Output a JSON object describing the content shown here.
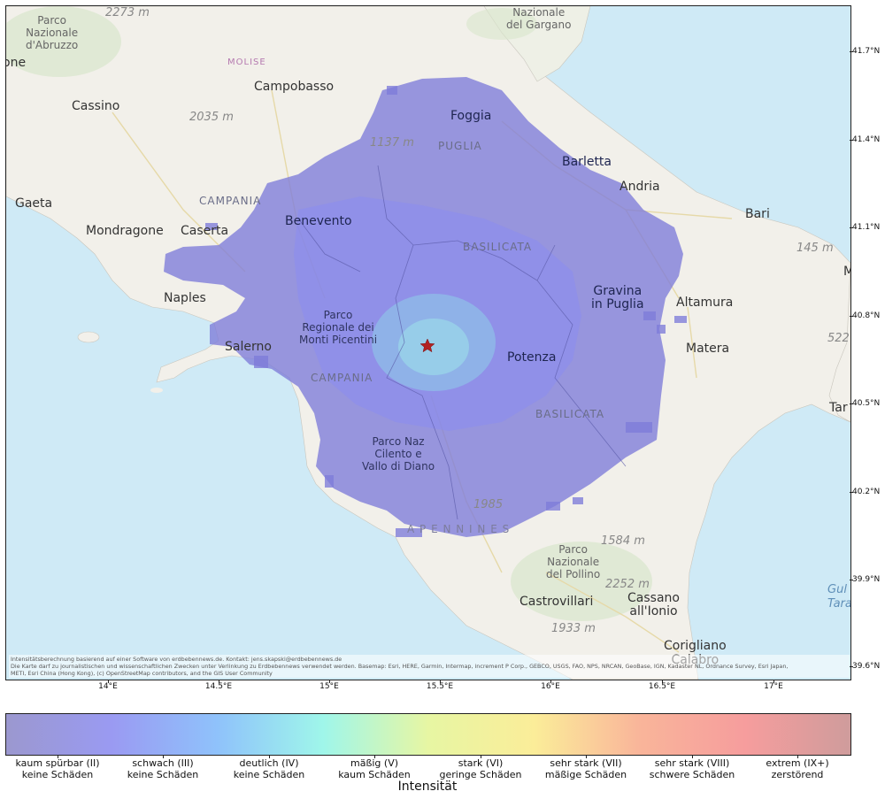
{
  "map": {
    "attribution_line1": "Intensitätsberechnung basierend auf einer Software von erdbebennews.de. Kontakt: jens.skapski@erdbebennews.de",
    "attribution_line2": "Die Karte darf zu journalistischen und wissenschaftlichen Zwecken unter Verlinkung zu Erdbebennews verwendet werden. Basemap: Esri, HERE, Garmin, Intermap, increment P Corp., GEBCO, USGS, FAO, NPS, NRCAN, GeoBase, IGN, Kadaster NL, Ordnance Survey, Esri Japan,",
    "attribution_line3": "METI, Esri China (Hong Kong), (c) OpenStreetMap contributors, and the GIS User Community",
    "epicenter_marker": "star-icon",
    "epicenter_color": "#b22222",
    "colors": {
      "sea": "#cfeaf6",
      "land": "#f2f0ea",
      "intensity_II": "#7d7bd8",
      "intensity_III": "#8a8df0",
      "intensity_IV": "#8fd3f2"
    }
  },
  "axes": {
    "lat_ticks": [
      "41.7°N",
      "41.4°N",
      "41.1°N",
      "40.8°N",
      "40.5°N",
      "40.2°N",
      "39.9°N",
      "39.6°N"
    ],
    "lon_ticks": [
      "14°E",
      "14.5°E",
      "15°E",
      "15.5°E",
      "16°E",
      "16.5°E",
      "17°E"
    ]
  },
  "places": {
    "parco_abruzzo": "Parco\nNazionale\nd'Abruzzo",
    "elev_2273": "2273 m",
    "one": "one",
    "molise": "MOLISE",
    "campobasso": "Campobasso",
    "gargano": "Nazionale\ndel Gargano",
    "cassino": "Cassino",
    "elev_2035": "2035 m",
    "foggia": "Foggia",
    "elev_1137": "1137 m",
    "puglia": "PUGLIA",
    "barletta": "Barletta",
    "andria": "Andria",
    "campania_top": "CAMPANIA",
    "gaeta": "Gaeta",
    "benevento": "Benevento",
    "bari": "Bari",
    "mondragone": "Mondragone",
    "caserta": "Caserta",
    "basilicata_top": "BASILICATA",
    "elev_145": "145 m",
    "naples": "Naples",
    "gravina": "Gravina\nin Puglia",
    "altamura": "Altamura",
    "monti_picentini": "Parco\nRegionale dei\nMonti Picentini",
    "salerno": "Salerno",
    "matera": "Matera",
    "elev_522": "522",
    "potenza": "Potenza",
    "campania_bottom": "CAMPANIA",
    "basilicata_bottom": "BASILICATA",
    "tar": "Tar",
    "cilento": "Parco Naz\nCilento e\nVallo di Diano",
    "elev_1985": "1985",
    "appennines": "A P E N N I N E S",
    "elev_1584": "1584 m",
    "pollino": "Parco\nNazionale\ndel Pollino",
    "elev_2252": "2252 m",
    "castrovillari": "Castrovillari",
    "cassano": "Cassano\nall'Ionio",
    "elev_1933": "1933 m",
    "corigliano": "Corigliano\nCalabro",
    "golfo": "Gul\nTara",
    "m_edge": "M"
  },
  "legend": {
    "title": "Intensität",
    "classes": [
      {
        "name": "kaum spürbar (II)",
        "damage": "keine Schäden"
      },
      {
        "name": "schwach (III)",
        "damage": "keine Schäden"
      },
      {
        "name": "deutlich (IV)",
        "damage": "keine Schäden"
      },
      {
        "name": "mäßig (V)",
        "damage": "kaum Schäden"
      },
      {
        "name": "stark (VI)",
        "damage": "geringe Schäden"
      },
      {
        "name": "sehr stark (VII)",
        "damage": "mäßige Schäden"
      },
      {
        "name": "sehr stark (VIII)",
        "damage": "schwere Schäden"
      },
      {
        "name": "extrem (IX+)",
        "damage": "zerstörend"
      }
    ],
    "gradient_colors": [
      "#9b98cf",
      "#9a9af2",
      "#8fc2fb",
      "#9ff6ea",
      "#e7f6a3",
      "#fbed99",
      "#f9b59a",
      "#f69d9d",
      "#cf9c9c"
    ]
  }
}
